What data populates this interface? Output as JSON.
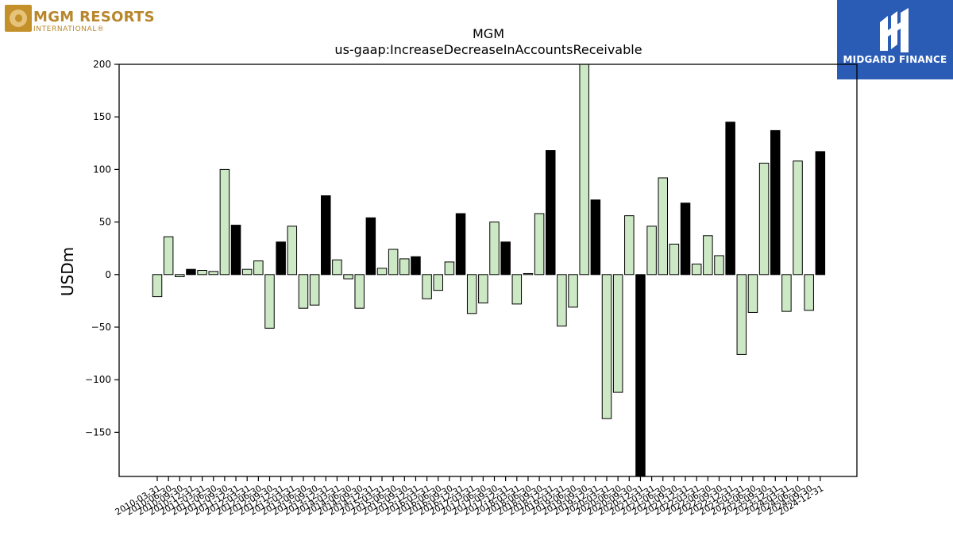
{
  "logos": {
    "left_line1": "MGM RESORTS",
    "left_line2": "INTERNATIONAL®",
    "right_brand": "MIDGARD FINANCE"
  },
  "chart_data": {
    "type": "bar",
    "title": "MGM",
    "subtitle": "us-gaap:IncreaseDecreaseInAccountsReceivable",
    "ylabel": "USDm",
    "xlabel": "",
    "ylim": [
      -192,
      200
    ],
    "yticks": [
      -150,
      -100,
      -50,
      0,
      50,
      100,
      150,
      200
    ],
    "colors": {
      "quarter": "#cde8c5",
      "annual": "#000000",
      "edge": "#000000"
    },
    "grid": false,
    "categories": [
      "2010-03-31",
      "2010-06-30",
      "2010-09-30",
      "2010-12-31",
      "2011-03-31",
      "2011-06-30",
      "2011-09-30",
      "2011-12-31",
      "2012-03-31",
      "2012-06-30",
      "2012-09-30",
      "2012-12-31",
      "2013-03-31",
      "2013-06-30",
      "2013-09-30",
      "2013-12-31",
      "2014-03-31",
      "2014-06-30",
      "2014-09-30",
      "2014-12-31",
      "2015-03-31",
      "2015-06-30",
      "2015-09-30",
      "2015-12-31",
      "2016-03-31",
      "2016-06-30",
      "2016-09-30",
      "2016-12-31",
      "2017-03-31",
      "2017-06-30",
      "2017-09-30",
      "2017-12-31",
      "2018-03-31",
      "2018-06-30",
      "2018-09-30",
      "2018-12-31",
      "2019-03-31",
      "2019-06-30",
      "2019-09-30",
      "2019-12-31",
      "2020-03-31",
      "2020-06-30",
      "2020-09-30",
      "2020-12-31",
      "2021-03-31",
      "2021-06-30",
      "2021-09-30",
      "2021-12-31",
      "2022-03-31",
      "2022-06-30",
      "2022-09-30",
      "2022-12-31",
      "2023-03-31",
      "2023-06-30",
      "2023-09-30",
      "2023-12-31",
      "2024-03-31",
      "2024-06-30",
      "2024-09-30",
      "2024-12-31"
    ],
    "values": [
      -21,
      36,
      -2,
      5,
      4,
      3,
      100,
      47,
      5,
      13,
      -51,
      31,
      46,
      -32,
      -29,
      75,
      14,
      -4,
      -32,
      54,
      6,
      24,
      15,
      17,
      -23,
      -15,
      12,
      58,
      -37,
      -27,
      50,
      31,
      -28,
      1,
      58,
      118,
      -49,
      -31,
      205,
      71,
      -137,
      -112,
      56,
      -192,
      46,
      92,
      29,
      68,
      10,
      37,
      18,
      145,
      -76,
      -36,
      106,
      137,
      -35,
      108,
      -34,
      117
    ]
  }
}
